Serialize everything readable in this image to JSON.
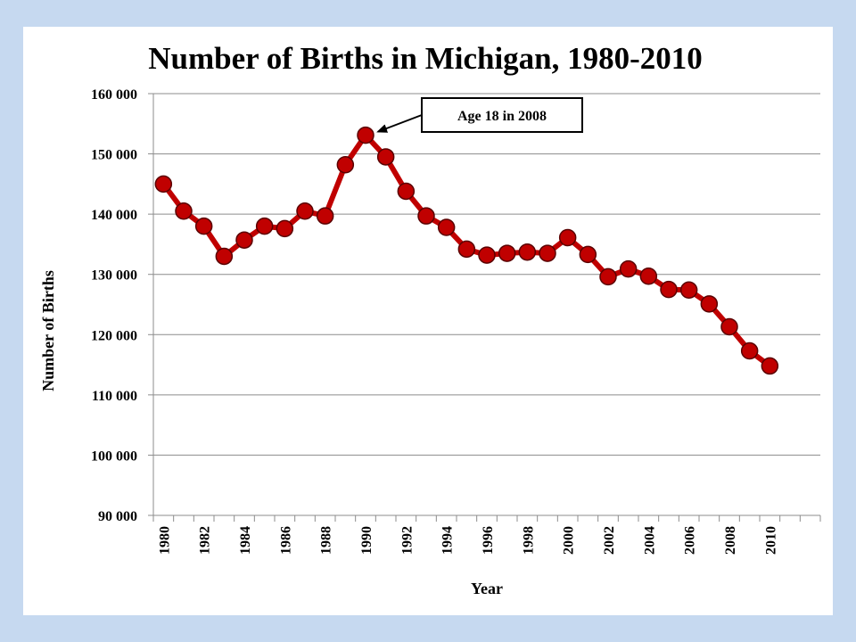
{
  "chart_data": {
    "type": "line",
    "title": "Number of Births in Michigan, 1980-2010",
    "xlabel": "Year",
    "ylabel": "Number of Births",
    "ylim": [
      90000,
      160000
    ],
    "y_ticks": [
      90000,
      100000,
      110000,
      120000,
      130000,
      140000,
      150000,
      160000
    ],
    "y_tick_labels": [
      "90 000",
      "100 000",
      "110 000",
      "120 000",
      "130 000",
      "140 000",
      "150 000",
      "160 000"
    ],
    "x_tick_labels": [
      "1980",
      "1982",
      "1984",
      "1986",
      "1988",
      "1990",
      "1992",
      "1994",
      "1996",
      "1998",
      "2000",
      "2002",
      "2004",
      "2006",
      "2008",
      "2010"
    ],
    "grid": true,
    "legend": "none",
    "series": [
      {
        "color": "#c00000",
        "x": [
          1980,
          1981,
          1982,
          1983,
          1984,
          1985,
          1986,
          1987,
          1988,
          1989,
          1990,
          1991,
          1992,
          1993,
          1994,
          1995,
          1996,
          1997,
          1998,
          1999,
          2000,
          2001,
          2002,
          2003,
          2004,
          2005,
          2006,
          2007,
          2008,
          2009,
          2010
        ],
        "values": [
          145000,
          140500,
          138000,
          133000,
          135700,
          138000,
          137600,
          140500,
          139700,
          148200,
          153100,
          149500,
          143800,
          139700,
          137800,
          134200,
          133200,
          133500,
          133700,
          133500,
          136100,
          133300,
          129600,
          130900,
          129700,
          127500,
          127400,
          125100,
          121300,
          117300,
          114800
        ]
      }
    ],
    "annotations": [
      {
        "text": "Age 18 in 2008",
        "points_to_x": 1990,
        "points_to_y": 153100
      }
    ]
  }
}
